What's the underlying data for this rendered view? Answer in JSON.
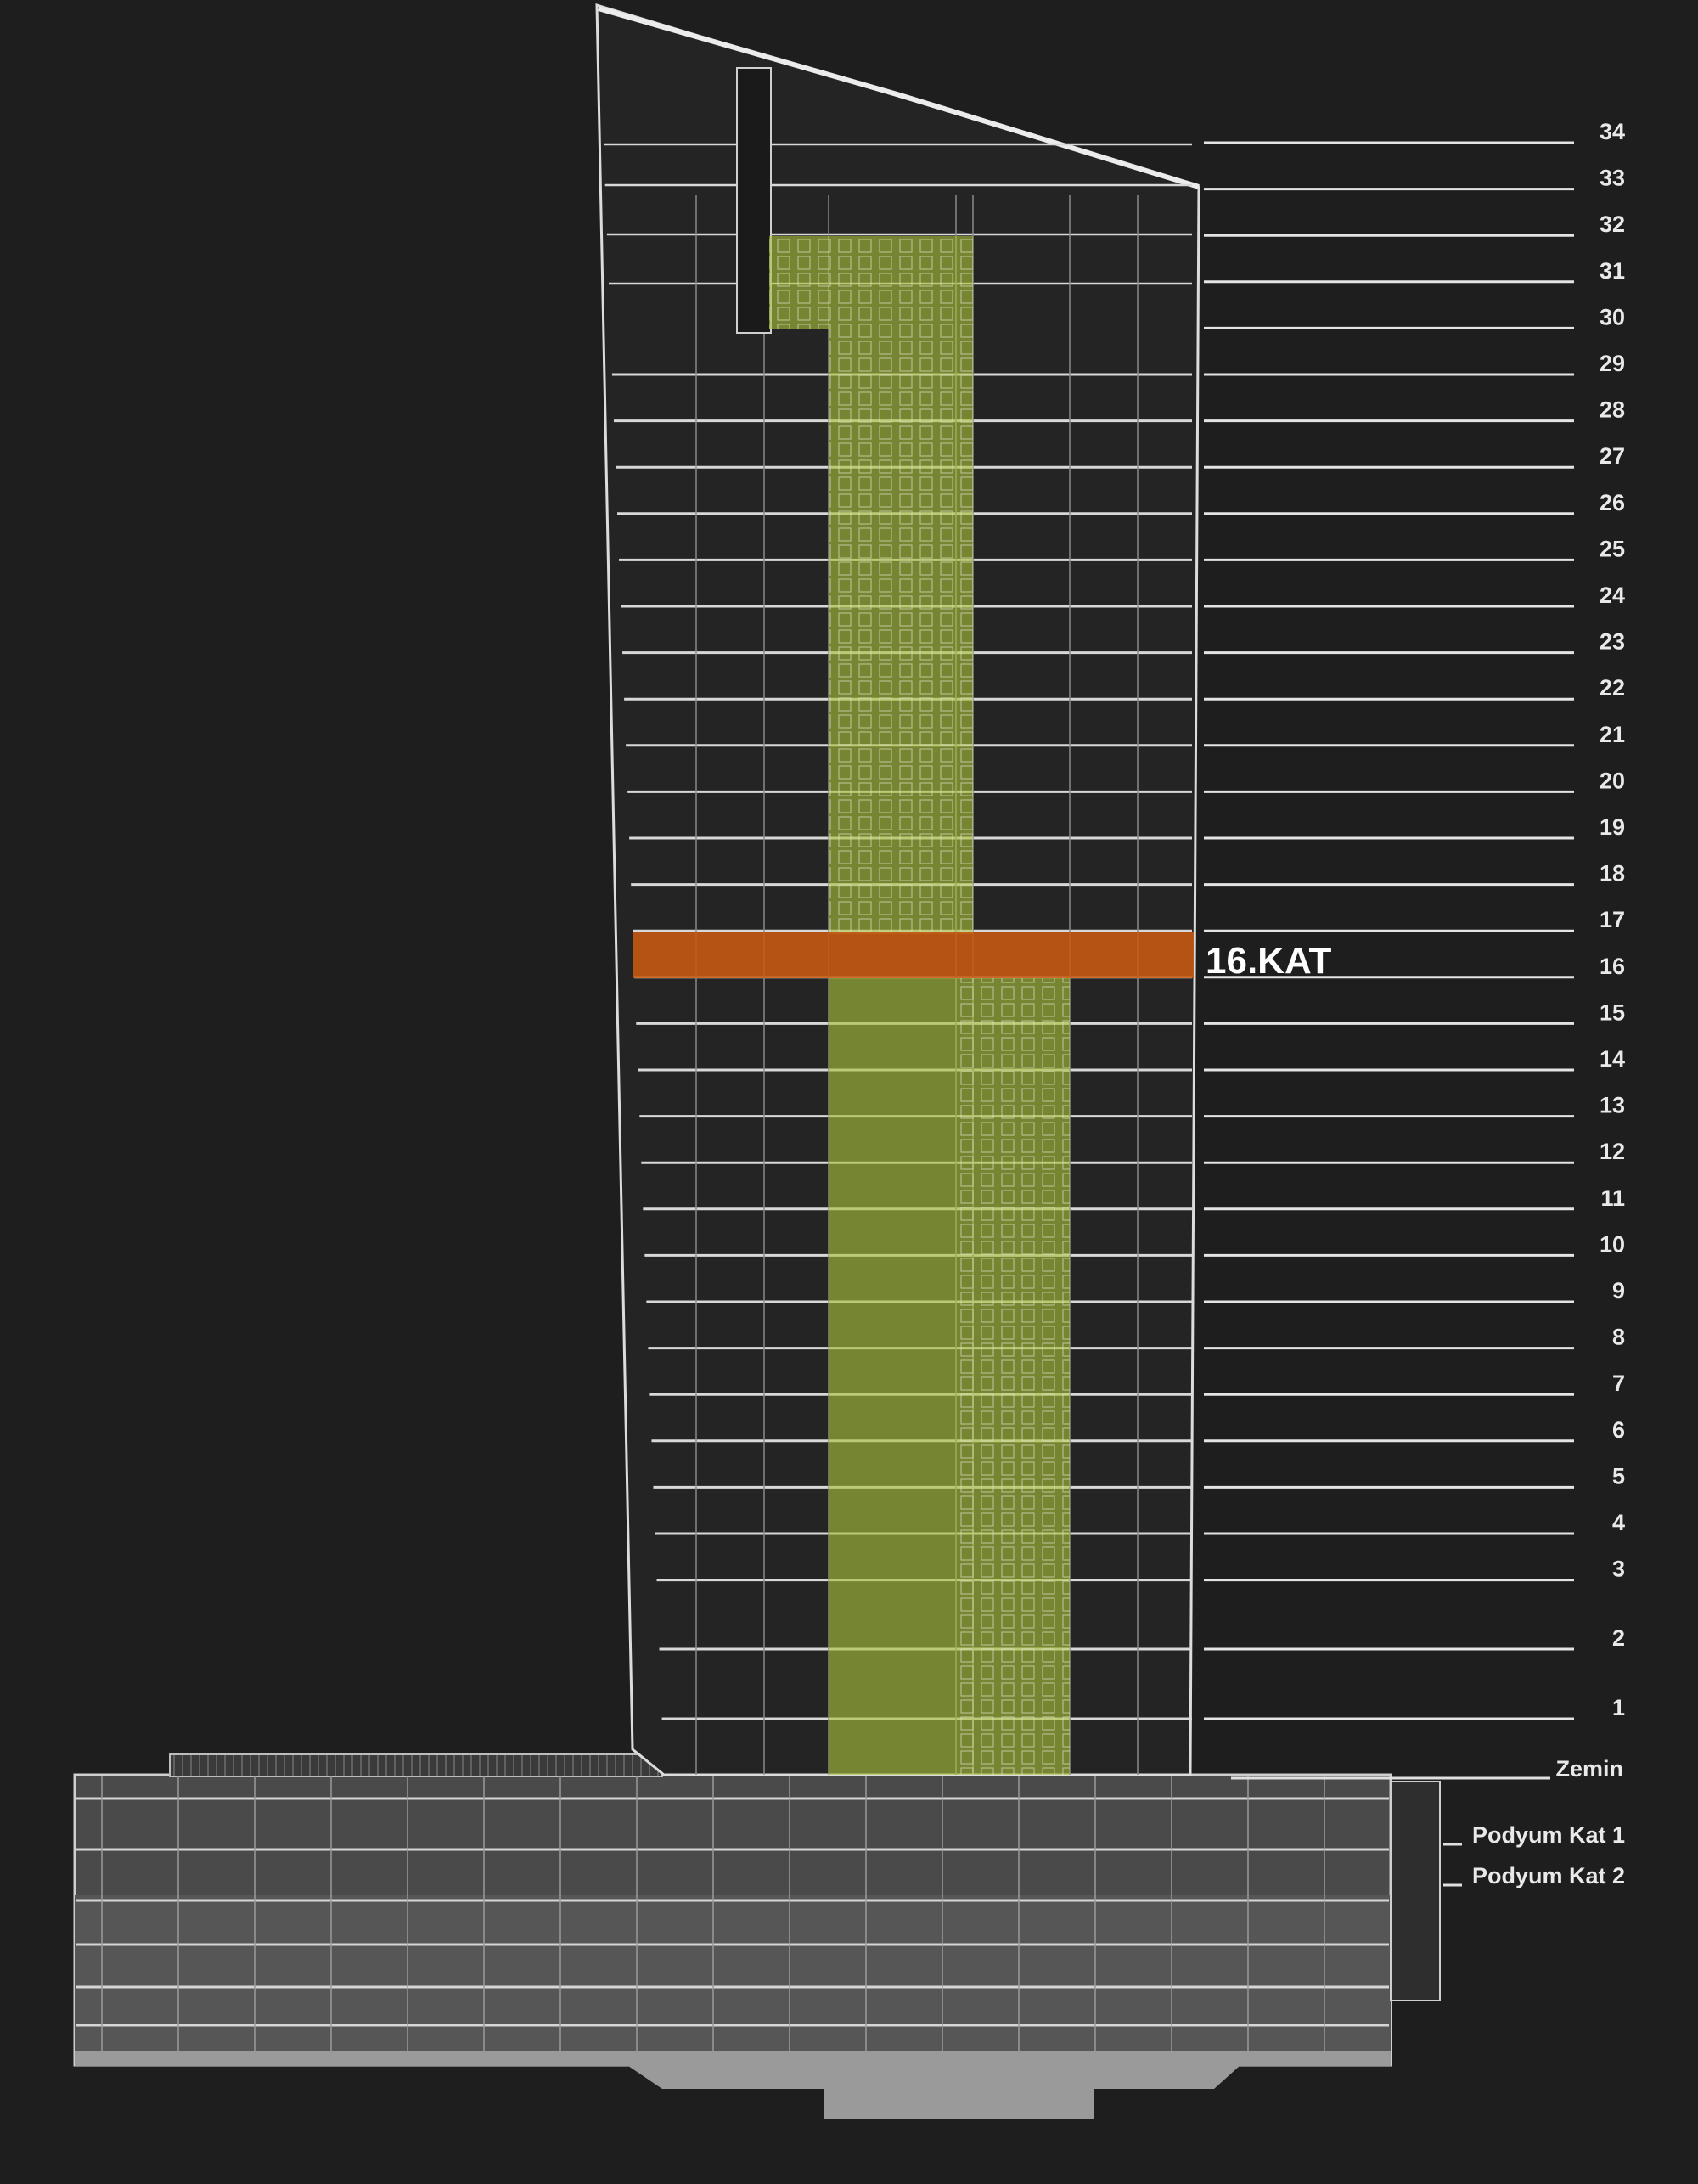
{
  "diagram": {
    "floors": [
      "34",
      "33",
      "32",
      "31",
      "30",
      "29",
      "28",
      "27",
      "26",
      "25",
      "24",
      "23",
      "22",
      "21",
      "20",
      "19",
      "18",
      "17",
      "16",
      "15",
      "14",
      "13",
      "12",
      "11",
      "10",
      "9",
      "8",
      "7",
      "6",
      "5",
      "4",
      "3",
      "2",
      "1"
    ],
    "ground_label": "Zemin",
    "podium_labels": [
      "Podyum Kat 1",
      "Podyum Kat 2"
    ],
    "highlight": {
      "floor": "16",
      "label": "16.KAT",
      "color": "#c95a12"
    },
    "core_color": "#a9c23a",
    "line_color": "#d8d8d8",
    "background": "#1e1e1e"
  }
}
